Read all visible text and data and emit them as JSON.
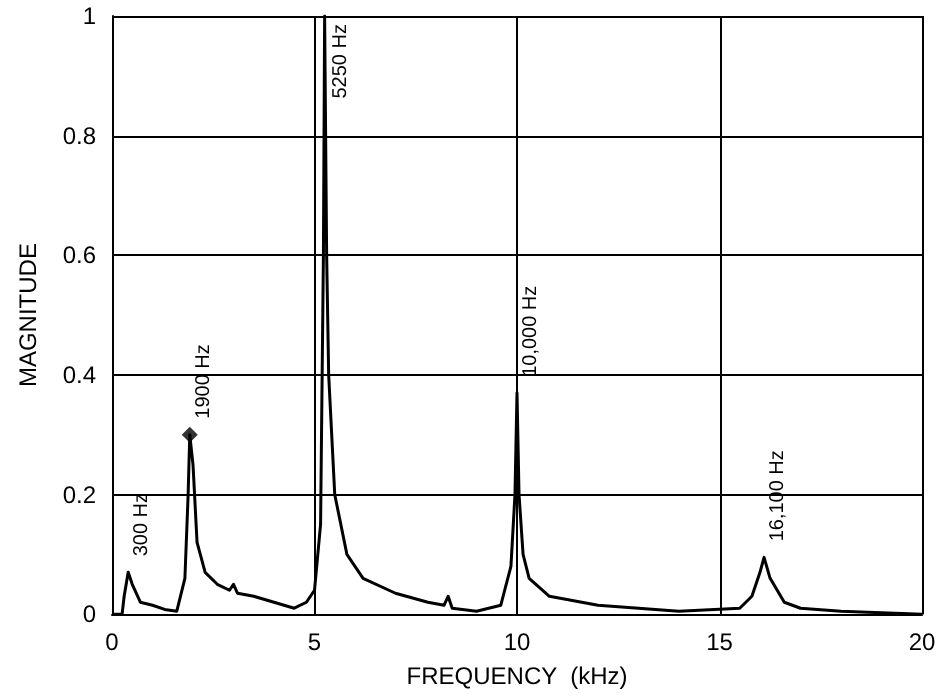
{
  "chart_data": {
    "type": "line",
    "xlabel": "FREQUENCY  (kHz)",
    "ylabel": "MAGNITUDE",
    "xlim": [
      0,
      20
    ],
    "xticks": [
      0,
      5,
      10,
      15,
      20
    ],
    "ylim": [
      0,
      1
    ],
    "yticks": [
      0,
      0.2,
      0.4,
      0.6,
      0.8,
      1
    ],
    "grid": true,
    "marker": "none",
    "line_style": "solid",
    "series": [
      {
        "color": "#000000",
        "x": [
          0,
          0.25,
          0.3,
          0.4,
          0.5,
          0.7,
          1.0,
          1.3,
          1.6,
          1.8,
          1.88,
          1.92,
          2.0,
          2.1,
          2.3,
          2.6,
          2.9,
          3.0,
          3.1,
          3.5,
          4.0,
          4.5,
          4.8,
          5.0,
          5.15,
          5.22,
          5.25,
          5.3,
          5.35,
          5.5,
          5.8,
          6.2,
          7.0,
          7.8,
          8.2,
          8.3,
          8.4,
          9.0,
          9.6,
          9.85,
          9.95,
          10.0,
          10.05,
          10.15,
          10.3,
          10.8,
          12.0,
          14.0,
          15.5,
          15.8,
          16.0,
          16.1,
          16.25,
          16.6,
          17.0,
          18.0,
          20.0
        ],
        "values": [
          0,
          0,
          0.03,
          0.07,
          0.05,
          0.02,
          0.015,
          0.008,
          0.005,
          0.06,
          0.2,
          0.3,
          0.25,
          0.12,
          0.07,
          0.05,
          0.04,
          0.05,
          0.035,
          0.03,
          0.02,
          0.01,
          0.02,
          0.04,
          0.15,
          0.6,
          1.0,
          0.6,
          0.4,
          0.2,
          0.1,
          0.06,
          0.035,
          0.02,
          0.015,
          0.03,
          0.01,
          0.005,
          0.015,
          0.08,
          0.2,
          0.37,
          0.2,
          0.1,
          0.06,
          0.03,
          0.015,
          0.005,
          0.01,
          0.03,
          0.07,
          0.095,
          0.06,
          0.02,
          0.01,
          0.005,
          0
        ]
      },
      {
        "type": "scatter",
        "color": "#000000",
        "marker": "diamond",
        "x": [
          1.92
        ],
        "values": [
          0.3
        ]
      }
    ],
    "annotations": [
      {
        "text": "300 Hz",
        "x": 0.4,
        "y": 0.07
      },
      {
        "text": "1900 Hz",
        "x": 1.92,
        "y": 0.3
      },
      {
        "text": "5250 Hz",
        "x": 5.25,
        "y": 1.0
      },
      {
        "text": "10,000 Hz",
        "x": 10.0,
        "y": 0.37
      },
      {
        "text": "16,100 Hz",
        "x": 16.1,
        "y": 0.095
      }
    ]
  }
}
